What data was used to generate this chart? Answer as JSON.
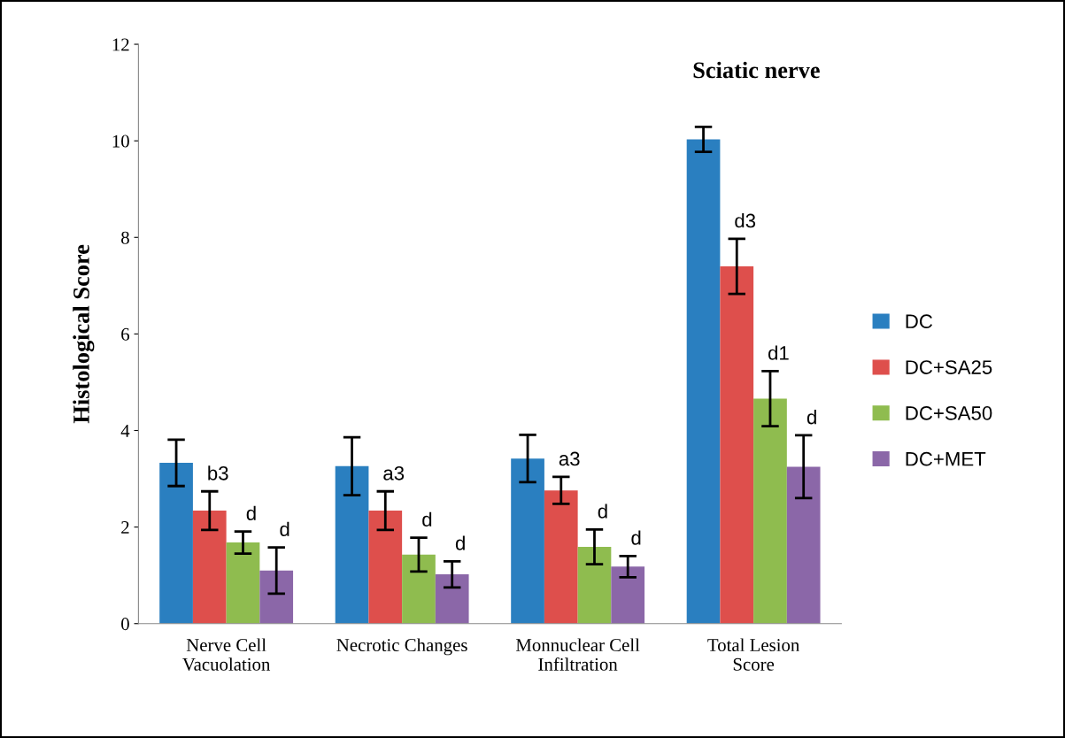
{
  "chart_data": {
    "type": "bar",
    "title": "Sciatic nerve",
    "ylabel": "Histological Score",
    "categories": [
      "Nerve Cell\nVacuolation",
      "Necrotic Changes",
      "Monnuclear Cell\nInfiltration",
      "Total Lesion\nScore"
    ],
    "series": [
      {
        "name": "DC",
        "color": "#2a7fc0",
        "values": [
          3.33,
          3.26,
          3.42,
          10.03
        ],
        "errors": [
          0.48,
          0.6,
          0.49,
          0.26
        ]
      },
      {
        "name": "DC+SA25",
        "color": "#de4f4c",
        "values": [
          2.34,
          2.34,
          2.76,
          7.4
        ],
        "errors": [
          0.4,
          0.4,
          0.28,
          0.57
        ],
        "value_labels": [
          "b3",
          "a3",
          "a3",
          "d3"
        ]
      },
      {
        "name": "DC+SA50",
        "color": "#8fbc4f",
        "values": [
          1.68,
          1.43,
          1.59,
          4.66
        ],
        "errors": [
          0.23,
          0.35,
          0.36,
          0.57
        ],
        "value_labels": [
          "d",
          "d",
          "d",
          "d1"
        ]
      },
      {
        "name": "DC+MET",
        "color": "#8b67a8",
        "values": [
          1.1,
          1.02,
          1.18,
          3.25
        ],
        "errors": [
          0.48,
          0.27,
          0.22,
          0.65
        ],
        "value_labels": [
          "d",
          "d",
          "d",
          "d"
        ]
      }
    ],
    "ylim": [
      0,
      12
    ],
    "yticks": [
      0,
      2,
      4,
      6,
      8,
      10,
      12
    ],
    "grid": false,
    "legend": "right"
  }
}
